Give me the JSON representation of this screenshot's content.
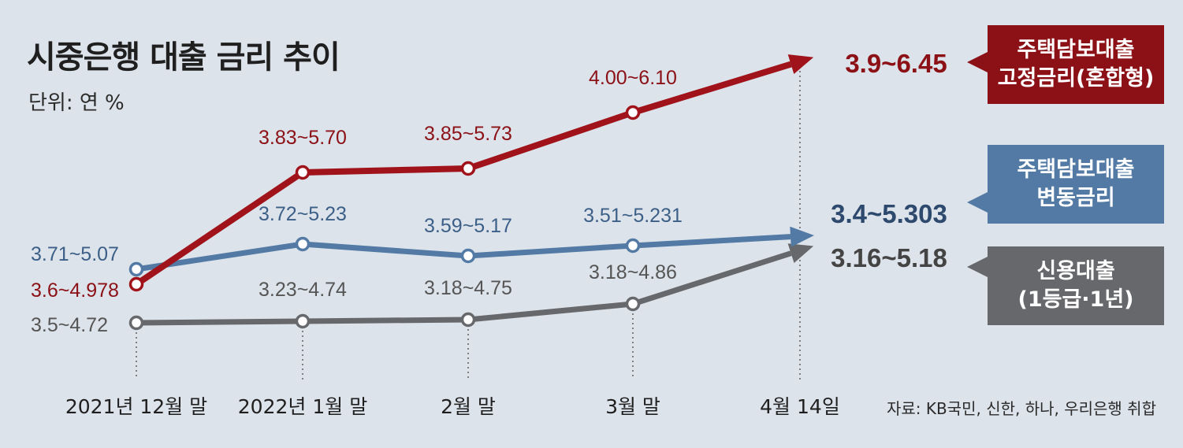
{
  "title": "시중은행 대출 금리 추이",
  "unit": "단위: 연 %",
  "source": "자료: KB국민, 신한, 하나, 우리은행 취합",
  "chart_data": {
    "type": "line",
    "title": "시중은행 대출 금리 추이",
    "unit": "단위: 연 %",
    "categories": [
      "2021년 12월 말",
      "2022년 1월 말",
      "2월 말",
      "3월 말",
      "4월 14일"
    ],
    "series": [
      {
        "name": "주택담보대출 고정금리(혼합형)",
        "name_lines": [
          "주택담보대출",
          "고정금리(혼합형)"
        ],
        "color": "#a0131a",
        "labels": [
          "3.6~4.978",
          "3.83~5.70",
          "3.85~5.73",
          "4.00~6.10",
          "3.9~6.45"
        ],
        "low": [
          3.6,
          3.83,
          3.85,
          4.0,
          3.9
        ],
        "high": [
          4.978,
          5.7,
          5.73,
          6.1,
          6.45
        ]
      },
      {
        "name": "주택담보대출 변동금리",
        "name_lines": [
          "주택담보대출",
          "변동금리"
        ],
        "color": "#527aa5",
        "labels": [
          "3.71~5.07",
          "3.72~5.23",
          "3.59~5.17",
          "3.51~5.231",
          "3.4~5.303"
        ],
        "low": [
          3.71,
          3.72,
          3.59,
          3.51,
          3.4
        ],
        "high": [
          5.07,
          5.23,
          5.17,
          5.231,
          5.303
        ]
      },
      {
        "name": "신용대출 (1등급·1년)",
        "name_lines": [
          "신용대출",
          "(1등급·1년)"
        ],
        "color": "#67686b",
        "labels": [
          "3.5~4.72",
          "3.23~4.74",
          "3.18~4.75",
          "3.18~4.86",
          "3.16~5.18"
        ],
        "low": [
          3.5,
          3.23,
          3.18,
          3.18,
          3.16
        ],
        "high": [
          4.72,
          4.74,
          4.75,
          4.86,
          5.18
        ]
      }
    ],
    "plotted_value": "high",
    "legend": "right",
    "grid": false
  }
}
